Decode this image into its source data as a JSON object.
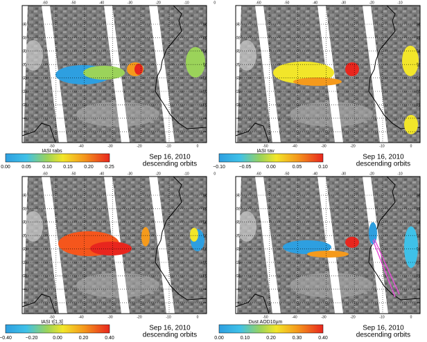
{
  "panels": [
    {
      "colorbar": {
        "label": "IASI τabs",
        "ticks": [
          "0.00",
          "0.05",
          "0.10",
          "0.15",
          "0.20",
          "0.25"
        ]
      },
      "date": "Sep 16, 2010",
      "orbits": "descending orbits"
    },
    {
      "colorbar": {
        "label": "IASI τav",
        "ticks": [
          "−0.10",
          "−0.05",
          "0.00",
          "0.05",
          "0.10"
        ]
      },
      "date": "Sep 16, 2010",
      "orbits": "descending orbits"
    },
    {
      "colorbar": {
        "label": "IASI τ[1,3]",
        "ticks": [
          "−0.40",
          "−0.20",
          "0.00",
          "0.20",
          "0.40"
        ]
      },
      "date": "Sep 16, 2010",
      "orbits": "descending orbits"
    },
    {
      "colorbar": {
        "label": "Dust AOD10µm",
        "ticks": [
          "0.00",
          "0.10",
          "0.20",
          "0.30",
          "0.40"
        ]
      },
      "date": "Sep 16, 2010",
      "orbits": "descending orbits"
    }
  ],
  "lon_labels_top": [
    "-60",
    "-50",
    "-40",
    "-30",
    "-20",
    "-10",
    "0"
  ],
  "lon_labels_bottom": [
    "-50",
    "-40",
    "-30",
    "-20",
    "-10",
    "0"
  ],
  "lat_labels": [
    "36",
    "32",
    "28",
    "24",
    "20",
    "16",
    "12",
    "8",
    "4"
  ]
}
